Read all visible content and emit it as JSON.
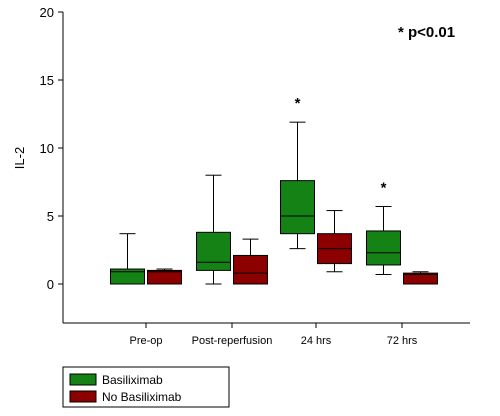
{
  "chart_data": {
    "type": "box",
    "title": "",
    "xlabel": "",
    "ylabel": "IL-2",
    "ylim": [
      0,
      20
    ],
    "yticks": [
      "0",
      "5",
      "10",
      "15",
      "20"
    ],
    "categories": [
      "Pre-op",
      "Post-reperfusion",
      "24 hrs",
      "72 hrs"
    ],
    "annotation": "* p<0.01",
    "significance_marker": "*",
    "significant_categories": [
      "24 hrs",
      "72 hrs"
    ],
    "legend_position": "bottom-left",
    "series": [
      {
        "name": "Basiliximab",
        "color": "#148214",
        "boxes": [
          {
            "category": "Pre-op",
            "min": 0,
            "q1": 0,
            "median": 0.9,
            "q3": 1.1,
            "max": 3.7
          },
          {
            "category": "Post-reperfusion",
            "min": 0,
            "q1": 1.0,
            "median": 1.6,
            "q3": 3.8,
            "max": 8.0
          },
          {
            "category": "24 hrs",
            "min": 2.6,
            "q1": 3.7,
            "median": 5.0,
            "q3": 7.6,
            "max": 11.9
          },
          {
            "category": "72 hrs",
            "min": 0.7,
            "q1": 1.4,
            "median": 2.3,
            "q3": 3.9,
            "max": 5.7
          }
        ]
      },
      {
        "name": "No Basiliximab",
        "color": "#8c0000",
        "boxes": [
          {
            "category": "Pre-op",
            "min": 0,
            "q1": 0,
            "median": 0.9,
            "q3": 1.0,
            "max": 1.1
          },
          {
            "category": "Post-reperfusion",
            "min": 0,
            "q1": 0,
            "median": 0.8,
            "q3": 2.1,
            "max": 3.3
          },
          {
            "category": "24 hrs",
            "min": 0.9,
            "q1": 1.5,
            "median": 2.6,
            "q3": 3.7,
            "max": 5.4
          },
          {
            "category": "72 hrs",
            "min": 0,
            "q1": 0,
            "median": 0.7,
            "q3": 0.8,
            "max": 0.9
          }
        ]
      }
    ]
  }
}
